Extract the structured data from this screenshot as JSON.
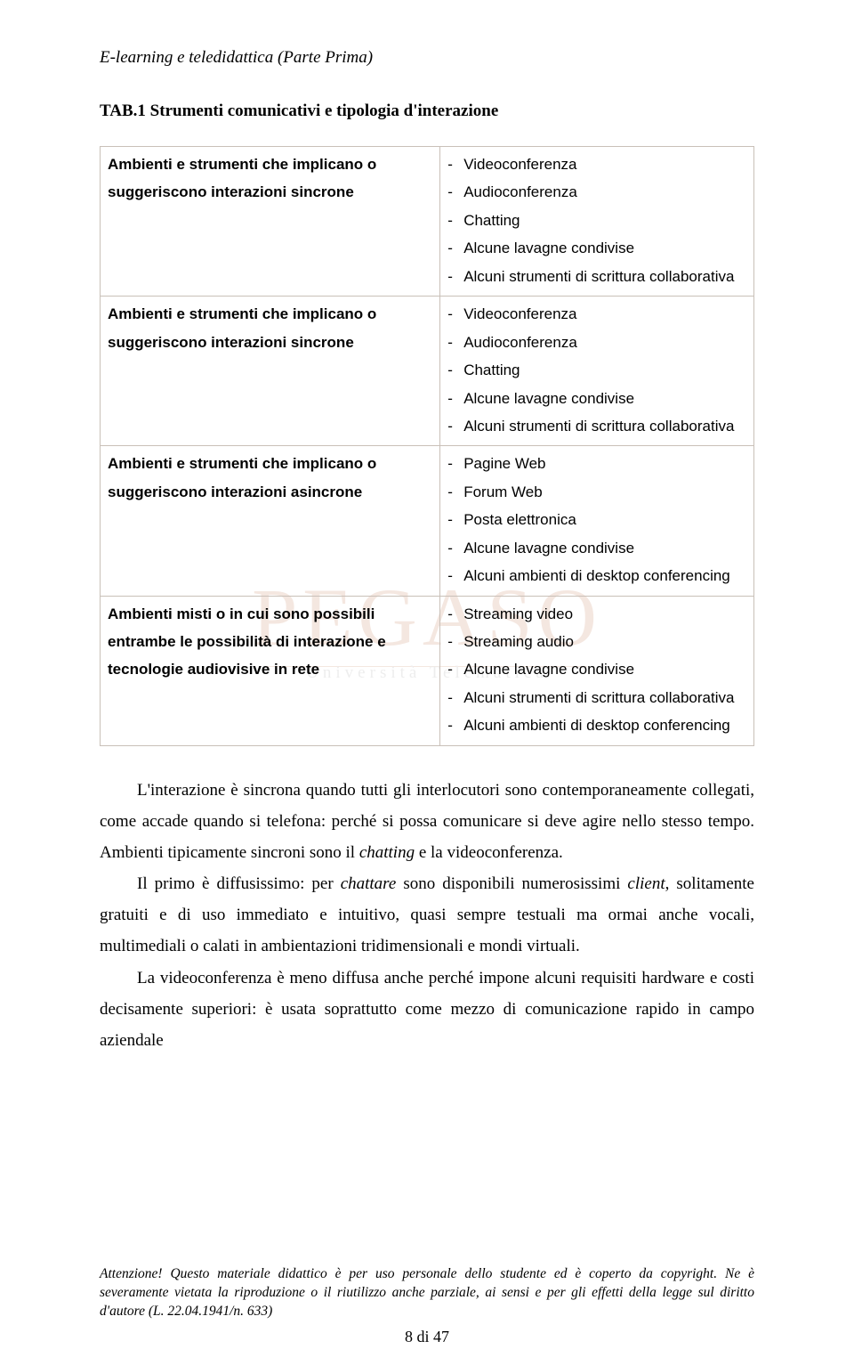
{
  "header": {
    "running": "E-learning e teledidattica (Parte Prima)"
  },
  "tableTitle": {
    "prefix": "TAB.1",
    "rest": "  Strumenti comunicativi e tipologia d'interazione"
  },
  "table": {
    "rows": [
      {
        "left": "Ambienti e strumenti che implicano o suggeriscono interazioni sincrone",
        "right": [
          "Videoconferenza",
          "Audioconferenza",
          "Chatting",
          "Alcune lavagne condivise",
          "Alcuni strumenti di scrittura collaborativa"
        ]
      },
      {
        "left": "Ambienti e strumenti che implicano o suggeriscono interazioni sincrone",
        "right": [
          "Videoconferenza",
          "Audioconferenza",
          "Chatting",
          "Alcune lavagne condivise",
          "Alcuni strumenti di scrittura collaborativa"
        ]
      },
      {
        "left": "Ambienti e strumenti che implicano o suggeriscono interazioni asincrone",
        "right": [
          "Pagine Web",
          "Forum Web",
          "Posta elettronica",
          "Alcune lavagne condivise",
          "Alcuni ambienti di desktop conferencing"
        ]
      },
      {
        "left": "Ambienti misti o in cui sono possibili entrambe le possibilità di interazione e tecnologie audiovisive in rete",
        "right": [
          "Streaming video",
          "Streaming audio",
          "Alcune lavagne condivise",
          "Alcuni strumenti di scrittura collaborativa",
          "Alcuni ambienti di desktop conferencing"
        ]
      }
    ]
  },
  "body": {
    "p1a": "L'interazione è sincrona quando tutti gli interlocutori sono contemporaneamente collegati, come accade quando si telefona: perché si possa comunicare si deve agire nello stesso tempo. Ambienti tipicamente sincroni sono il ",
    "p1b": "chatting",
    "p1c": " e la videoconferenza.",
    "p2a": "Il primo è diffusissimo: per ",
    "p2b": "chattare",
    "p2c": " sono disponibili numerosissimi ",
    "p2d": "client",
    "p2e": ",   solitamente gratuiti e di uso immediato e intuitivo, quasi sempre testuali ma ormai anche vocali, multimediali o calati in ambientazioni tridimensionali e mondi virtuali.",
    "p3": "La videoconferenza è meno diffusa anche perché impone alcuni requisiti hardware e costi decisamente superiori: è usata soprattutto come mezzo di comunicazione rapido in campo aziendale"
  },
  "footer": {
    "text": "Attenzione! Questo materiale didattico è per uso personale dello studente ed è coperto da copyright. Ne è severamente vietata la riproduzione o il riutilizzo anche parziale, ai sensi e per gli effetti della legge sul diritto d'autore (L. 22.04.1941/n. 633)",
    "pagenum": "8 di 47"
  },
  "watermark": {
    "big": "PEGASO",
    "small": "Università  Telematica"
  }
}
